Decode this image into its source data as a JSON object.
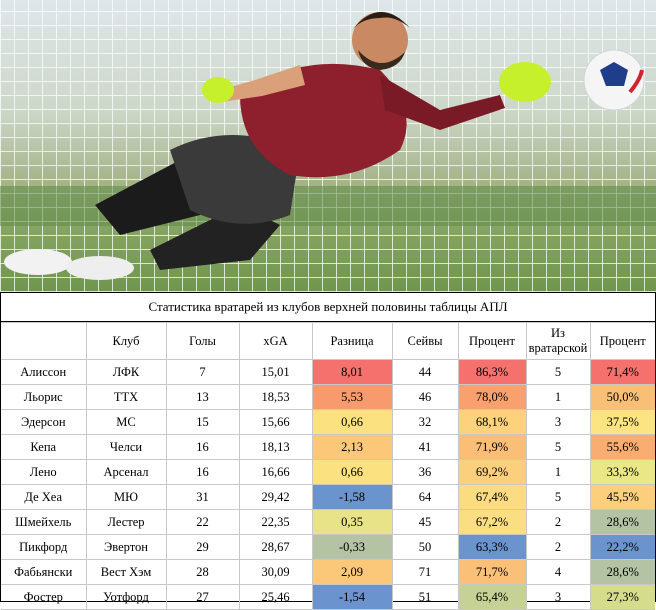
{
  "photo": {
    "alt_subject": "goalkeeper-diving"
  },
  "table": {
    "caption": "Статистика вратарей из клубов верхней половины таблицы АПЛ",
    "headers": [
      "",
      "Клуб",
      "Голы",
      "xGA",
      "Разница",
      "Сейвы",
      "Процент",
      "Из вратарской",
      "Процент"
    ],
    "rows": [
      {
        "player": "Алиссон",
        "club": "ЛФК",
        "goals": "7",
        "xga": "15,01",
        "diff": "8,01",
        "saves": "44",
        "pct": "86,3%",
        "box": "5",
        "pct2": "71,4%",
        "diff_color": "#f4716d",
        "pct_color": "#f4716d",
        "pct2_color": "#f4716d"
      },
      {
        "player": "Льорис",
        "club": "ТТХ",
        "goals": "13",
        "xga": "18,53",
        "diff": "5,53",
        "saves": "46",
        "pct": "78,0%",
        "box": "1",
        "pct2": "50,0%",
        "diff_color": "#f79a6e",
        "pct_color": "#f8a06e",
        "pct2_color": "#f9bf77"
      },
      {
        "player": "Эдерсон",
        "club": "МС",
        "goals": "15",
        "xga": "15,66",
        "diff": "0,66",
        "saves": "32",
        "pct": "68,1%",
        "box": "3",
        "pct2": "37,5%",
        "diff_color": "#fbe17f",
        "pct_color": "#fcd27c",
        "pct2_color": "#fce483"
      },
      {
        "player": "Кепа",
        "club": "Челси",
        "goals": "16",
        "xga": "18,13",
        "diff": "2,13",
        "saves": "41",
        "pct": "71,9%",
        "box": "5",
        "pct2": "55,6%",
        "diff_color": "#fac878",
        "pct_color": "#fbbe77",
        "pct2_color": "#f9ad71"
      },
      {
        "player": "Лено",
        "club": "Арсенал",
        "goals": "16",
        "xga": "16,66",
        "diff": "0,66",
        "saves": "36",
        "pct": "69,2%",
        "box": "1",
        "pct2": "33,3%",
        "diff_color": "#fbe17f",
        "pct_color": "#fccf7c",
        "pct2_color": "#eae786"
      },
      {
        "player": "Де Хеа",
        "club": "МЮ",
        "goals": "31",
        "xga": "29,42",
        "diff": "-1,58",
        "saves": "64",
        "pct": "67,4%",
        "box": "5",
        "pct2": "45,5%",
        "diff_color": "#6b94cf",
        "pct_color": "#fcdc80",
        "pct2_color": "#fbcf7b"
      },
      {
        "player": "Шмейхель",
        "club": "Лестер",
        "goals": "22",
        "xga": "22,35",
        "diff": "0,35",
        "saves": "45",
        "pct": "67,2%",
        "box": "2",
        "pct2": "28,6%",
        "diff_color": "#e8e389",
        "pct_color": "#fbde81",
        "pct2_color": "#b3c3a4"
      },
      {
        "player": "Пикфорд",
        "club": "Эвертон",
        "goals": "29",
        "xga": "28,67",
        "diff": "-0,33",
        "saves": "50",
        "pct": "63,3%",
        "box": "2",
        "pct2": "22,2%",
        "diff_color": "#b3c3a4",
        "pct_color": "#6b94cf",
        "pct2_color": "#6b94cf"
      },
      {
        "player": "Фабьянски",
        "club": "Вест Хэм",
        "goals": "28",
        "xga": "30,09",
        "diff": "2,09",
        "saves": "71",
        "pct": "71,7%",
        "box": "4",
        "pct2": "28,6%",
        "diff_color": "#fac878",
        "pct_color": "#fbc078",
        "pct2_color": "#b3c3a4"
      },
      {
        "player": "Фостер",
        "club": "Уотфорд",
        "goals": "27",
        "xga": "25,46",
        "diff": "-1,54",
        "saves": "51",
        "pct": "65,4%",
        "box": "3",
        "pct2": "27,3%",
        "diff_color": "#6b94cf",
        "pct_color": "#c6d295",
        "pct2_color": "#d5dc8c"
      }
    ]
  }
}
